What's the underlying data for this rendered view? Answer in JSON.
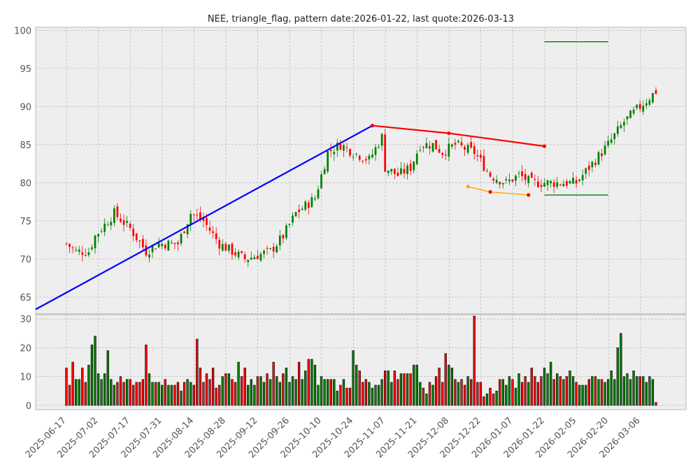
{
  "title": "NEE, triangle_flag, pattern date:2026-01-22, last quote:2026-03-13",
  "colors": {
    "background": "#eeeeee",
    "grid": "#b0b0b0",
    "up": "#008000",
    "down": "#ff0000",
    "flag_upper": "#ff0000",
    "pole": "#0000ff",
    "flag_lower": "#ffa500",
    "target": "#008000",
    "frame": "#bbbbbb"
  },
  "chart_data": [
    {
      "type": "candlestick",
      "title": "NEE, triangle_flag, pattern date:2026-01-22, last quote:2026-03-13",
      "x_tick_labels": [
        "2025-06-17",
        "2025-07-02",
        "2025-07-17",
        "2025-07-31",
        "2025-08-14",
        "2025-08-28",
        "2025-09-12",
        "2025-09-26",
        "2025-10-10",
        "2025-10-24",
        "2025-11-07",
        "2025-11-21",
        "2025-12-08",
        "2025-12-22",
        "2026-01-07",
        "2026-01-22",
        "2026-02-05",
        "2026-02-20",
        "2026-03-06"
      ],
      "y_ticks": [
        65,
        70,
        75,
        80,
        85,
        90,
        95,
        100
      ],
      "ylim": [
        62.8,
        100.4
      ],
      "grid": true,
      "close_path": [
        [
          0,
          72
        ],
        [
          3,
          71
        ],
        [
          7,
          71
        ],
        [
          9,
          73
        ],
        [
          11,
          74
        ],
        [
          15,
          76
        ],
        [
          20,
          74
        ],
        [
          25,
          71
        ],
        [
          29,
          72
        ],
        [
          35,
          72
        ],
        [
          39,
          76
        ],
        [
          43,
          75
        ],
        [
          48,
          72
        ],
        [
          52,
          71
        ],
        [
          56,
          70
        ],
        [
          64,
          71
        ],
        [
          68,
          73
        ],
        [
          72,
          76
        ],
        [
          78,
          78
        ],
        [
          82,
          84
        ],
        [
          86,
          85
        ],
        [
          90,
          84
        ],
        [
          95,
          83
        ],
        [
          99,
          86
        ],
        [
          100,
          82
        ],
        [
          104,
          81
        ],
        [
          108,
          82
        ],
        [
          111,
          85
        ],
        [
          115,
          85
        ],
        [
          118,
          84
        ],
        [
          122,
          85
        ],
        [
          128,
          84
        ],
        [
          133,
          81
        ],
        [
          138,
          80
        ],
        [
          142,
          81
        ],
        [
          146,
          80
        ],
        [
          152,
          80
        ],
        [
          156,
          80
        ],
        [
          160,
          80
        ],
        [
          166,
          83
        ],
        [
          170,
          85
        ],
        [
          175,
          88
        ],
        [
          180,
          90
        ],
        [
          185,
          92
        ],
        [
          188,
          94
        ],
        [
          190,
          92
        ],
        [
          193,
          93
        ],
        [
          196,
          90
        ],
        [
          200,
          91
        ],
        [
          203,
          92
        ],
        [
          206,
          92
        ]
      ],
      "volume_max_shown": 30,
      "volume_ticks": [
        0,
        10,
        20,
        30
      ],
      "volume_levels": [
        13,
        7,
        15,
        9,
        9,
        13,
        8,
        14,
        21,
        24,
        11,
        9,
        11,
        19,
        9,
        7,
        8,
        10,
        8,
        9,
        9,
        7,
        8,
        8,
        9,
        21,
        11,
        8,
        8,
        8,
        7,
        9,
        7,
        7,
        7,
        8,
        5,
        8,
        9,
        8,
        7,
        23,
        13,
        8,
        11,
        9,
        13,
        6,
        7,
        10,
        11,
        11,
        9,
        8,
        15,
        10,
        13,
        7,
        9,
        7,
        10,
        10,
        8,
        11,
        9,
        15,
        10,
        8,
        11,
        13,
        8,
        10,
        9,
        15,
        9,
        12,
        16,
        16,
        14,
        7,
        10,
        9,
        9,
        9,
        9,
        5,
        7,
        9,
        6,
        6,
        19,
        14,
        12,
        8,
        9,
        8,
        6,
        7,
        7,
        9,
        12,
        12,
        8,
        12,
        9,
        11,
        11,
        11,
        11,
        14,
        14,
        8,
        6,
        4,
        8,
        7,
        10,
        13,
        8,
        18,
        14,
        13,
        9,
        8,
        9,
        7,
        10,
        9,
        31,
        8,
        8,
        3,
        4,
        6,
        4,
        5,
        9,
        9,
        7,
        10,
        9,
        6,
        11,
        8,
        10,
        8,
        13,
        10,
        8,
        10,
        13,
        11,
        15,
        9,
        11,
        10,
        9,
        10,
        12,
        10,
        8,
        7,
        7,
        7,
        9,
        10,
        10,
        9,
        9,
        8,
        9,
        12,
        9,
        20,
        25,
        10,
        11,
        9,
        12,
        10,
        10,
        10,
        8,
        10,
        9,
        1
      ],
      "pattern": {
        "pole": {
          "start": [
            0,
            65.6
          ],
          "end": [
            96,
            87.5
          ]
        },
        "flag_upper": [
          [
            96,
            87.5
          ],
          [
            120,
            86.5
          ],
          [
            150,
            84.8
          ]
        ],
        "flag_lower": [
          [
            126,
            79.5
          ],
          [
            133,
            78.8
          ],
          [
            145,
            78.4
          ]
        ],
        "target_upper": [
          [
            150,
            98.5
          ],
          [
            170,
            98.5
          ]
        ],
        "target_lower": [
          [
            150,
            78.4
          ],
          [
            170,
            78.4
          ]
        ]
      }
    }
  ]
}
